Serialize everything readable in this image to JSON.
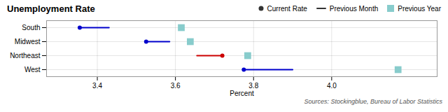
{
  "chart_data": {
    "type": "dot",
    "title": "Unemployment Rate",
    "xlabel": "Percent",
    "annotations": [
      "Sources: Stockingblue, Bureau of Labor Statistics"
    ],
    "categories": [
      "South",
      "Midwest",
      "Northeast",
      "West"
    ],
    "series": [
      {
        "name": "Previous Year",
        "type": "dot",
        "marker": "square",
        "color": "#88cccc",
        "values": [
          3.615,
          3.638,
          3.785,
          4.17
        ]
      },
      {
        "name": "Previous Month",
        "type": "range",
        "colors": [
          "#0000cc",
          "#0000cc",
          "#cc0000",
          "#0000cc"
        ],
        "values": [
          [
            3.355,
            3.43
          ],
          [
            3.525,
            3.585
          ],
          [
            3.655,
            3.72
          ],
          [
            3.775,
            3.9
          ]
        ]
      },
      {
        "name": "Current Rate",
        "type": "dot",
        "marker": "circle",
        "colors": [
          "#0000cc",
          "#0000cc",
          "#cc0000",
          "#0000cc"
        ],
        "values": [
          3.355,
          3.525,
          3.72,
          3.775
        ]
      }
    ],
    "xlim": [
      3.27,
      4.27
    ],
    "xticks": [
      3.4,
      3.6,
      3.8,
      {
        "value": 4.0,
        "label": "4.0"
      }
    ],
    "grid": true,
    "legend": "upper right"
  }
}
